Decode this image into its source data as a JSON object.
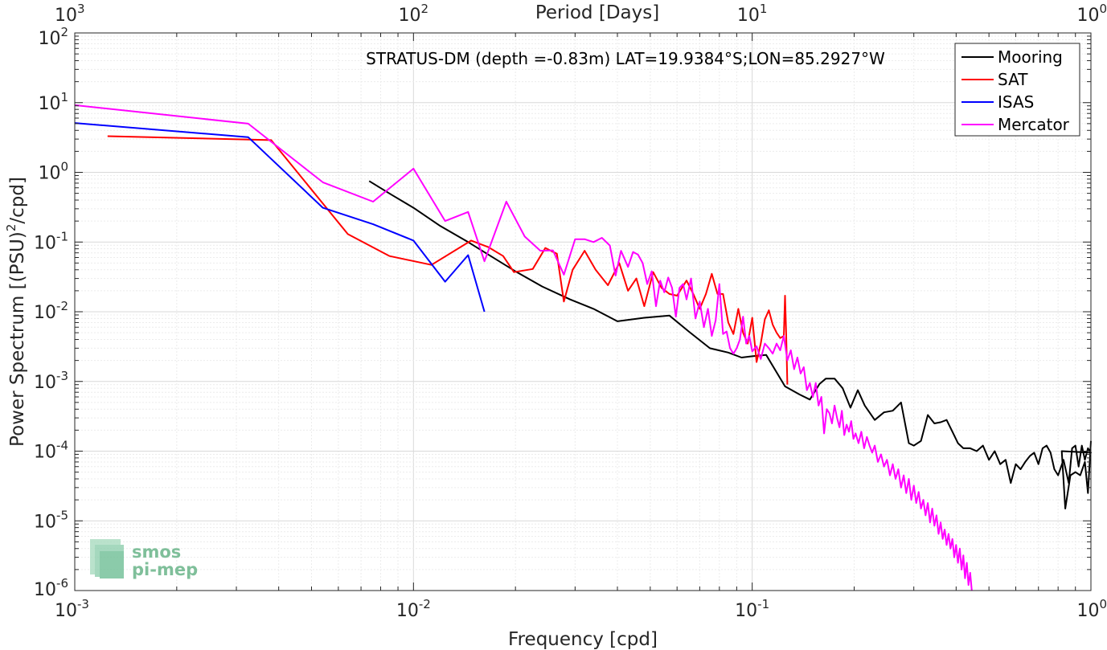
{
  "chart_data": {
    "type": "line",
    "title": "STRATUS-DM (depth =-0.83m) LAT=19.9384°S;LON=85.2927°W",
    "xlabel": "Frequency [cpd]",
    "ylabel": "Power Spectrum [(PSU)",
    "ylabel_sup": "2",
    "ylabel_tail": "/cpd]",
    "x2label": "Period [Days]",
    "xscale": "log",
    "yscale": "log",
    "xlim": [
      0.001,
      1
    ],
    "ylim": [
      1e-06,
      100
    ],
    "grid": true,
    "legend_position": "top-right",
    "x_ticks": [
      {
        "base": "10",
        "exp": "-3",
        "value": 0.001
      },
      {
        "base": "10",
        "exp": "-2",
        "value": 0.01
      },
      {
        "base": "10",
        "exp": "-1",
        "value": 0.1
      },
      {
        "base": "10",
        "exp": "0",
        "value": 1
      }
    ],
    "x2_ticks": [
      {
        "base": "10",
        "exp": "3",
        "value": 0.001
      },
      {
        "base": "10",
        "exp": "2",
        "value": 0.01
      },
      {
        "base": "10",
        "exp": "1",
        "value": 0.1
      },
      {
        "base": "10",
        "exp": "0",
        "value": 1
      }
    ],
    "y_ticks": [
      {
        "base": "10",
        "exp": "2",
        "value": 100
      },
      {
        "base": "10",
        "exp": "1",
        "value": 10
      },
      {
        "base": "10",
        "exp": "0",
        "value": 1
      },
      {
        "base": "10",
        "exp": "-1",
        "value": 0.1
      },
      {
        "base": "10",
        "exp": "-2",
        "value": 0.01
      },
      {
        "base": "10",
        "exp": "-3",
        "value": 0.001
      },
      {
        "base": "10",
        "exp": "-4",
        "value": 0.0001
      },
      {
        "base": "10",
        "exp": "-5",
        "value": 1e-05
      },
      {
        "base": "10",
        "exp": "-6",
        "value": 1e-06
      }
    ],
    "series": [
      {
        "name": "Mooring",
        "color": "#000000",
        "points": [
          [
            0.0074,
            0.75
          ],
          [
            0.0086,
            0.48
          ],
          [
            0.01,
            0.31
          ],
          [
            0.012,
            0.17
          ],
          [
            0.0145,
            0.1
          ],
          [
            0.017,
            0.062
          ],
          [
            0.02,
            0.038
          ],
          [
            0.024,
            0.023
          ],
          [
            0.029,
            0.015
          ],
          [
            0.034,
            0.011
          ],
          [
            0.04,
            0.0073
          ],
          [
            0.048,
            0.0082
          ],
          [
            0.057,
            0.0088
          ],
          [
            0.065,
            0.0052
          ],
          [
            0.075,
            0.003
          ],
          [
            0.085,
            0.0026
          ],
          [
            0.093,
            0.0022
          ],
          [
            0.1,
            0.0023
          ],
          [
            0.11,
            0.0024
          ],
          [
            0.125,
            0.00085
          ],
          [
            0.138,
            0.00065
          ],
          [
            0.148,
            0.00055
          ],
          [
            0.158,
            0.00092
          ],
          [
            0.165,
            0.0011
          ],
          [
            0.175,
            0.0011
          ],
          [
            0.185,
            0.0008
          ],
          [
            0.195,
            0.00042
          ],
          [
            0.205,
            0.00075
          ],
          [
            0.215,
            0.00045
          ],
          [
            0.23,
            0.00028
          ],
          [
            0.245,
            0.00036
          ],
          [
            0.26,
            0.00038
          ],
          [
            0.275,
            0.0005
          ],
          [
            0.29,
            0.00013
          ],
          [
            0.3,
            0.00012
          ],
          [
            0.315,
            0.00014
          ],
          [
            0.33,
            0.00033
          ],
          [
            0.345,
            0.00025
          ],
          [
            0.36,
            0.00026
          ],
          [
            0.375,
            0.00028
          ],
          [
            0.39,
            0.00019
          ],
          [
            0.405,
            0.00013
          ],
          [
            0.42,
            0.00011
          ],
          [
            0.44,
            0.00011
          ],
          [
            0.46,
            0.0001
          ],
          [
            0.48,
            0.00012
          ],
          [
            0.5,
            7.5e-05
          ],
          [
            0.52,
            0.0001
          ],
          [
            0.54,
            6.5e-05
          ],
          [
            0.56,
            7.5e-05
          ],
          [
            0.58,
            3.5e-05
          ],
          [
            0.6,
            6.5e-05
          ],
          [
            0.62,
            5.5e-05
          ],
          [
            0.64,
            7e-05
          ],
          [
            0.66,
            8.5e-05
          ],
          [
            0.68,
            9.5e-05
          ],
          [
            0.7,
            6.5e-05
          ],
          [
            0.72,
            0.00011
          ],
          [
            0.74,
            0.00012
          ],
          [
            0.76,
            9.5e-05
          ],
          [
            0.78,
            5.5e-05
          ],
          [
            0.8,
            4.5e-05
          ],
          [
            0.83,
            7.5e-05
          ],
          [
            0.86,
            3.5e-05
          ],
          [
            0.88,
            0.00011
          ],
          [
            0.9,
            0.00012
          ],
          [
            0.92,
            6e-05
          ],
          [
            0.94,
            0.00012
          ],
          [
            0.96,
            7.5e-05
          ],
          [
            0.98,
            0.00011
          ],
          [
            1.0,
            9.5e-05
          ],
          [
            0.82,
            0.0001
          ],
          [
            0.84,
            1.5e-05
          ],
          [
            0.87,
            4.5e-05
          ],
          [
            0.9,
            5e-05
          ],
          [
            0.93,
            4.5e-05
          ],
          [
            0.96,
            7e-05
          ],
          [
            0.98,
            2.5e-05
          ],
          [
            1.0,
            0.00014
          ]
        ]
      },
      {
        "name": "SAT",
        "color": "#ff0000",
        "points": [
          [
            0.00125,
            3.3
          ],
          [
            0.0038,
            2.9
          ],
          [
            0.0064,
            0.13
          ],
          [
            0.0085,
            0.063
          ],
          [
            0.0113,
            0.047
          ],
          [
            0.0148,
            0.105
          ],
          [
            0.0166,
            0.085
          ],
          [
            0.0184,
            0.063
          ],
          [
            0.0198,
            0.037
          ],
          [
            0.0225,
            0.041
          ],
          [
            0.0245,
            0.082
          ],
          [
            0.0265,
            0.068
          ],
          [
            0.0278,
            0.014
          ],
          [
            0.0295,
            0.04
          ],
          [
            0.032,
            0.075
          ],
          [
            0.0345,
            0.04
          ],
          [
            0.0375,
            0.024
          ],
          [
            0.0405,
            0.05
          ],
          [
            0.043,
            0.02
          ],
          [
            0.0455,
            0.03
          ],
          [
            0.048,
            0.012
          ],
          [
            0.051,
            0.037
          ],
          [
            0.054,
            0.022
          ],
          [
            0.057,
            0.018
          ],
          [
            0.06,
            0.017
          ],
          [
            0.064,
            0.028
          ],
          [
            0.067,
            0.018
          ],
          [
            0.07,
            0.011
          ],
          [
            0.073,
            0.018
          ],
          [
            0.076,
            0.035
          ],
          [
            0.079,
            0.018
          ],
          [
            0.082,
            0.018
          ],
          [
            0.085,
            0.007
          ],
          [
            0.088,
            0.0048
          ],
          [
            0.091,
            0.011
          ],
          [
            0.094,
            0.005
          ],
          [
            0.097,
            0.0035
          ],
          [
            0.1,
            0.0082
          ],
          [
            0.103,
            0.0019
          ],
          [
            0.106,
            0.0035
          ],
          [
            0.109,
            0.0078
          ],
          [
            0.112,
            0.0105
          ],
          [
            0.115,
            0.0065
          ],
          [
            0.118,
            0.005
          ],
          [
            0.121,
            0.0042
          ],
          [
            0.124,
            0.0045
          ],
          [
            0.125,
            0.017
          ],
          [
            0.126,
            0.0045
          ],
          [
            0.127,
            0.0009
          ]
        ]
      },
      {
        "name": "ISAS",
        "color": "#0000ff",
        "points": [
          [
            0.001,
            5.1
          ],
          [
            0.00325,
            3.2
          ],
          [
            0.0054,
            0.31
          ],
          [
            0.0076,
            0.18
          ],
          [
            0.01,
            0.105
          ],
          [
            0.0124,
            0.027
          ],
          [
            0.0145,
            0.065
          ],
          [
            0.0162,
            0.01
          ]
        ]
      },
      {
        "name": "Mercator",
        "color": "#ff00ff",
        "points": [
          [
            0.001,
            9.2
          ],
          [
            0.00325,
            5.0
          ],
          [
            0.0054,
            0.72
          ],
          [
            0.0076,
            0.38
          ],
          [
            0.01,
            1.13
          ],
          [
            0.0124,
            0.2
          ],
          [
            0.0145,
            0.27
          ],
          [
            0.0162,
            0.053
          ],
          [
            0.0188,
            0.38
          ],
          [
            0.0213,
            0.12
          ],
          [
            0.0237,
            0.075
          ],
          [
            0.0258,
            0.076
          ],
          [
            0.0278,
            0.034
          ],
          [
            0.03,
            0.11
          ],
          [
            0.032,
            0.11
          ],
          [
            0.034,
            0.1
          ],
          [
            0.036,
            0.115
          ],
          [
            0.038,
            0.089
          ],
          [
            0.0395,
            0.033
          ],
          [
            0.041,
            0.075
          ],
          [
            0.043,
            0.044
          ],
          [
            0.0445,
            0.072
          ],
          [
            0.046,
            0.066
          ],
          [
            0.0475,
            0.05
          ],
          [
            0.049,
            0.025
          ],
          [
            0.0505,
            0.038
          ],
          [
            0.052,
            0.012
          ],
          [
            0.0535,
            0.028
          ],
          [
            0.055,
            0.019
          ],
          [
            0.0565,
            0.031
          ],
          [
            0.058,
            0.022
          ],
          [
            0.0595,
            0.0085
          ],
          [
            0.061,
            0.022
          ],
          [
            0.0625,
            0.025
          ],
          [
            0.064,
            0.015
          ],
          [
            0.066,
            0.03
          ],
          [
            0.068,
            0.008
          ],
          [
            0.07,
            0.014
          ],
          [
            0.072,
            0.006
          ],
          [
            0.074,
            0.011
          ],
          [
            0.076,
            0.0045
          ],
          [
            0.078,
            0.0075
          ],
          [
            0.08,
            0.025
          ],
          [
            0.082,
            0.0048
          ],
          [
            0.084,
            0.0052
          ],
          [
            0.086,
            0.003
          ],
          [
            0.088,
            0.0025
          ],
          [
            0.09,
            0.003
          ],
          [
            0.092,
            0.004
          ],
          [
            0.094,
            0.0085
          ],
          [
            0.096,
            0.0035
          ],
          [
            0.098,
            0.0045
          ],
          [
            0.1,
            0.0027
          ],
          [
            0.103,
            0.0032
          ],
          [
            0.106,
            0.0021
          ],
          [
            0.109,
            0.0035
          ],
          [
            0.112,
            0.003
          ],
          [
            0.115,
            0.0025
          ],
          [
            0.118,
            0.0035
          ],
          [
            0.121,
            0.0028
          ],
          [
            0.124,
            0.0045
          ],
          [
            0.127,
            0.002
          ],
          [
            0.13,
            0.0028
          ],
          [
            0.133,
            0.0015
          ],
          [
            0.136,
            0.0022
          ],
          [
            0.139,
            0.0013
          ],
          [
            0.142,
            0.0016
          ],
          [
            0.145,
            0.00075
          ],
          [
            0.148,
            0.00095
          ],
          [
            0.151,
            0.0006
          ],
          [
            0.154,
            0.00095
          ],
          [
            0.157,
            0.00045
          ],
          [
            0.16,
            0.0006
          ],
          [
            0.163,
            0.00018
          ],
          [
            0.166,
            0.0004
          ],
          [
            0.169,
            0.00035
          ],
          [
            0.172,
            0.00025
          ],
          [
            0.175,
            0.00045
          ],
          [
            0.178,
            0.0003
          ],
          [
            0.181,
            0.00022
          ],
          [
            0.184,
            0.00038
          ],
          [
            0.187,
            0.00017
          ],
          [
            0.19,
            0.00024
          ],
          [
            0.193,
            0.00019
          ],
          [
            0.196,
            0.00027
          ],
          [
            0.199,
            0.00015
          ],
          [
            0.202,
            0.00018
          ],
          [
            0.206,
            0.00013
          ],
          [
            0.21,
            0.00019
          ],
          [
            0.214,
            0.00011
          ],
          [
            0.218,
            0.00016
          ],
          [
            0.222,
            0.00012
          ],
          [
            0.226,
            9.5e-05
          ],
          [
            0.23,
            0.00012
          ],
          [
            0.235,
            7e-05
          ],
          [
            0.24,
            9e-05
          ],
          [
            0.245,
            6e-05
          ],
          [
            0.25,
            7.5e-05
          ],
          [
            0.255,
            4.5e-05
          ],
          [
            0.26,
            6.5e-05
          ],
          [
            0.265,
            4e-05
          ],
          [
            0.27,
            5.5e-05
          ],
          [
            0.275,
            3e-05
          ],
          [
            0.28,
            4.5e-05
          ],
          [
            0.285,
            2.5e-05
          ],
          [
            0.29,
            4e-05
          ],
          [
            0.295,
            2e-05
          ],
          [
            0.3,
            3.2e-05
          ],
          [
            0.305,
            1.8e-05
          ],
          [
            0.31,
            2.6e-05
          ],
          [
            0.315,
            1.5e-05
          ],
          [
            0.32,
            2e-05
          ],
          [
            0.325,
            1.2e-05
          ],
          [
            0.33,
            1.8e-05
          ],
          [
            0.335,
            9.5e-06
          ],
          [
            0.34,
            1.5e-05
          ],
          [
            0.345,
            8.5e-06
          ],
          [
            0.35,
            1.2e-05
          ],
          [
            0.355,
            6.5e-06
          ],
          [
            0.36,
            9.5e-06
          ],
          [
            0.365,
            5.5e-06
          ],
          [
            0.37,
            7.5e-06
          ],
          [
            0.375,
            4.5e-06
          ],
          [
            0.38,
            6.5e-06
          ],
          [
            0.385,
            4e-06
          ],
          [
            0.39,
            5.5e-06
          ],
          [
            0.395,
            3e-06
          ],
          [
            0.4,
            4.5e-06
          ],
          [
            0.405,
            2.5e-06
          ],
          [
            0.41,
            4e-06
          ],
          [
            0.415,
            2e-06
          ],
          [
            0.42,
            3.2e-06
          ],
          [
            0.425,
            1.5e-06
          ],
          [
            0.43,
            2.5e-06
          ],
          [
            0.435,
            1.2e-06
          ],
          [
            0.44,
            1.8e-06
          ],
          [
            0.445,
            1e-06
          ]
        ]
      }
    ]
  },
  "watermark": {
    "line1": "smos",
    "line2": "pi-mep",
    "color": "#7fbf9a"
  }
}
